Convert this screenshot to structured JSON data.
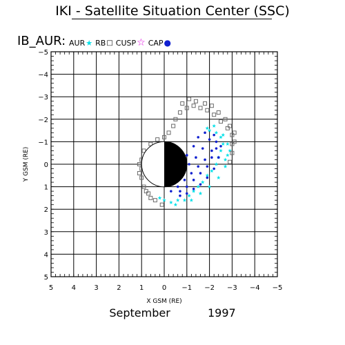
{
  "title": "IKI - Satellite Situation Center (SSC)",
  "subtitle": "IB_AUR:",
  "legend": [
    {
      "label": "AUR",
      "symbol": "★",
      "color": "#00e0e8"
    },
    {
      "label": "RB",
      "symbol": "□",
      "color": "#000000"
    },
    {
      "label": "CUSP",
      "symbol": "☆",
      "color": "#e000e0"
    },
    {
      "label": "CAP",
      "symbol": "●",
      "color": "#1020d0"
    }
  ],
  "date": {
    "month": "September",
    "year": "1997"
  },
  "chart_data": {
    "type": "scatter",
    "title": "IKI - Satellite Situation Center (SSC)",
    "xlabel": "X GSM (RE)",
    "ylabel": "Y GSM (RE)",
    "xlim": [
      5,
      -5
    ],
    "ylim": [
      -5,
      5
    ],
    "x_ticks": [
      5,
      4,
      3,
      2,
      1,
      0,
      -1,
      -2,
      -3,
      -4,
      -5
    ],
    "y_ticks": [
      -5,
      -4,
      -3,
      -2,
      -1,
      0,
      1,
      2,
      3,
      4,
      5
    ],
    "grid": true,
    "earth": {
      "center": [
        0,
        0
      ],
      "radius": 1,
      "night_side": "negative-x"
    },
    "series": [
      {
        "name": "AUR",
        "color": "#00e0e8",
        "marker": "star",
        "points": [
          [
            -1.1,
            1.4
          ],
          [
            -1.3,
            1.2
          ],
          [
            -1.5,
            1.0
          ],
          [
            -1.7,
            0.8
          ],
          [
            -1.9,
            0.5
          ],
          [
            -2.1,
            0.3
          ],
          [
            -2.3,
            0.0
          ],
          [
            -2.4,
            -0.3
          ],
          [
            -2.5,
            -0.6
          ],
          [
            -2.6,
            -0.9
          ],
          [
            -2.5,
            -1.2
          ],
          [
            -2.3,
            -1.4
          ],
          [
            -2.0,
            -1.5
          ],
          [
            -0.6,
            1.6
          ],
          [
            -0.3,
            1.7
          ],
          [
            0.0,
            1.6
          ],
          [
            0.2,
            1.5
          ],
          [
            -0.9,
            1.6
          ],
          [
            -0.5,
            1.8
          ],
          [
            -1.2,
            1.6
          ],
          [
            -1.6,
            1.3
          ],
          [
            -2.0,
            1.0
          ],
          [
            -2.4,
            0.6
          ],
          [
            -2.7,
            0.1
          ],
          [
            -2.8,
            -0.4
          ],
          [
            -2.8,
            -0.9
          ],
          [
            -2.6,
            -1.3
          ],
          [
            -2.2,
            -1.7
          ],
          [
            -1.9,
            -1.6
          ],
          [
            -2.9,
            -0.6
          ],
          [
            -2.7,
            -0.2
          ]
        ]
      },
      {
        "name": "RB",
        "color": "#6a6a6a",
        "marker": "square",
        "points": [
          [
            -1.3,
            -2.6
          ],
          [
            -1.6,
            -2.5
          ],
          [
            -1.9,
            -2.4
          ],
          [
            -2.2,
            -2.2
          ],
          [
            -2.5,
            -1.9
          ],
          [
            -2.8,
            -1.6
          ],
          [
            -3.0,
            -1.3
          ],
          [
            -3.0,
            -0.9
          ],
          [
            -3.0,
            -0.5
          ],
          [
            -2.9,
            -0.1
          ],
          [
            -1.0,
            -2.5
          ],
          [
            -0.7,
            -2.3
          ],
          [
            -0.5,
            -2.0
          ],
          [
            -0.4,
            -1.7
          ],
          [
            -0.2,
            -1.4
          ],
          [
            0.0,
            -1.2
          ],
          [
            0.3,
            -1.1
          ],
          [
            0.6,
            -0.9
          ],
          [
            0.9,
            -0.6
          ],
          [
            1.0,
            -0.2
          ],
          [
            1.0,
            0.2
          ],
          [
            1.0,
            0.6
          ],
          [
            0.9,
            1.0
          ],
          [
            0.7,
            1.3
          ],
          [
            0.4,
            1.6
          ],
          [
            0.1,
            1.8
          ],
          [
            -1.4,
            -2.8
          ],
          [
            -1.8,
            -2.7
          ],
          [
            -2.1,
            -2.6
          ],
          [
            -2.4,
            -2.3
          ],
          [
            -2.7,
            -2.0
          ],
          [
            -2.9,
            -1.7
          ],
          [
            -3.1,
            -1.4
          ],
          [
            -3.1,
            -1.0
          ],
          [
            -1.1,
            -2.9
          ],
          [
            -0.8,
            -2.7
          ],
          [
            0.8,
            1.2
          ],
          [
            0.6,
            1.5
          ],
          [
            1.1,
            0.4
          ],
          [
            1.1,
            0.0
          ]
        ]
      },
      {
        "name": "CUSP",
        "color": "#e000e0",
        "marker": "star-open",
        "points": [
          [
            0.4,
            0.0
          ],
          [
            0.3,
            -0.1
          ],
          [
            0.35,
            0.1
          ],
          [
            0.5,
            0.05
          ],
          [
            0.25,
            0.05
          ]
        ]
      },
      {
        "name": "CAP",
        "color": "#1020d0",
        "marker": "dot",
        "points": [
          [
            -0.6,
            1.0
          ],
          [
            -0.9,
            0.7
          ],
          [
            -1.2,
            0.4
          ],
          [
            -1.5,
            0.1
          ],
          [
            -1.8,
            -0.2
          ],
          [
            -2.1,
            -0.6
          ],
          [
            -2.3,
            -1.0
          ],
          [
            -2.2,
            -1.3
          ],
          [
            -0.3,
            1.2
          ],
          [
            -0.7,
            1.2
          ],
          [
            -1.0,
            1.0
          ],
          [
            -1.3,
            0.7
          ],
          [
            -1.6,
            0.4
          ],
          [
            -1.9,
            0.1
          ],
          [
            -2.1,
            -0.3
          ],
          [
            -2.3,
            -0.7
          ],
          [
            -0.8,
            0.3
          ],
          [
            -1.1,
            0.0
          ],
          [
            -1.4,
            -0.3
          ],
          [
            -1.7,
            -0.7
          ],
          [
            -2.0,
            -1.1
          ],
          [
            -0.5,
            0.6
          ],
          [
            -1.0,
            -0.4
          ],
          [
            -1.3,
            -0.8
          ],
          [
            -1.8,
            -1.4
          ],
          [
            -1.5,
            -1.2
          ],
          [
            -2.5,
            -0.8
          ],
          [
            -2.4,
            -0.3
          ],
          [
            -2.2,
            0.2
          ],
          [
            -1.9,
            0.6
          ],
          [
            -1.6,
            0.9
          ],
          [
            -1.3,
            1.1
          ],
          [
            -1.0,
            1.3
          ],
          [
            -0.7,
            1.4
          ],
          [
            -0.2,
            0.8
          ],
          [
            -0.4,
            -0.6
          ]
        ]
      }
    ]
  }
}
